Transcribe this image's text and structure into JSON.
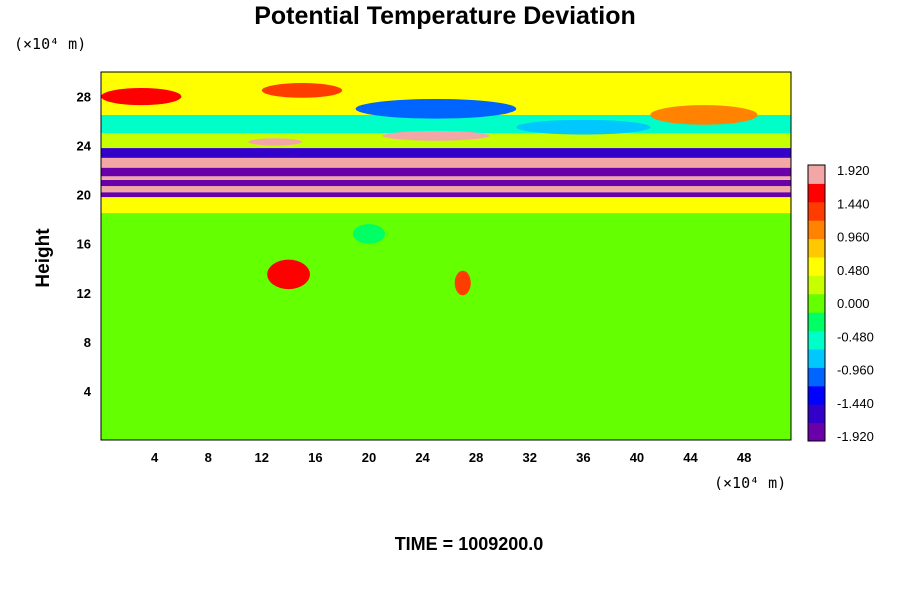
{
  "chart_data": {
    "type": "heatmap",
    "title": "Potential Temperature Deviation",
    "ylabel": "Height",
    "xlabel": "",
    "x_unit": "(×10⁴ m)",
    "y_unit": "(×10⁴ m)",
    "xlim": [
      0,
      51.5
    ],
    "ylim": [
      0,
      30
    ],
    "x_ticks": [
      "4",
      "8",
      "12",
      "16",
      "20",
      "24",
      "28",
      "32",
      "36",
      "40",
      "44",
      "48"
    ],
    "y_ticks": [
      "4",
      "8",
      "12",
      "16",
      "20",
      "24",
      "28"
    ],
    "colorbar": {
      "min": -2.0,
      "max": 2.0,
      "labels": [
        "1.920",
        "1.440",
        "0.960",
        "0.480",
        "0.000",
        "-0.480",
        "-0.960",
        "-1.440",
        "-1.920"
      ],
      "colors": [
        "#6a00a8",
        "#3200c8",
        "#0000ff",
        "#0064ff",
        "#00c8ff",
        "#00ffc8",
        "#00ff64",
        "#64ff00",
        "#c8ff00",
        "#ffff00",
        "#ffc800",
        "#ff8200",
        "#ff3c00",
        "#ff0000",
        "#f2a6a6"
      ]
    },
    "bands": [
      {
        "y_from": 0,
        "y_to": 18.5,
        "value": 0.05
      },
      {
        "y_from": 18.5,
        "y_to": 19.8,
        "value": 0.4
      },
      {
        "y_from": 19.8,
        "y_to": 20.2,
        "value": -1.9
      },
      {
        "y_from": 20.2,
        "y_to": 20.7,
        "value": 2.0
      },
      {
        "y_from": 20.7,
        "y_to": 21.2,
        "value": -1.9
      },
      {
        "y_from": 21.2,
        "y_to": 21.5,
        "value": 2.0
      },
      {
        "y_from": 21.5,
        "y_to": 22.2,
        "value": -1.9
      },
      {
        "y_from": 22.2,
        "y_to": 23.0,
        "value": 2.0
      },
      {
        "y_from": 23.0,
        "y_to": 23.8,
        "value": -1.5
      },
      {
        "y_from": 23.8,
        "y_to": 25.0,
        "value": 0.2
      },
      {
        "y_from": 25.0,
        "y_to": 26.5,
        "value": -0.5
      },
      {
        "y_from": 26.5,
        "y_to": 30,
        "value": 0.6
      }
    ],
    "features": [
      {
        "x": 14,
        "y": 13.5,
        "rx": 1.6,
        "ry": 1.2,
        "value": 1.5
      },
      {
        "x": 27,
        "y": 12.8,
        "rx": 0.6,
        "ry": 1.0,
        "value": 1.2
      },
      {
        "x": 20,
        "y": 16.8,
        "rx": 1.2,
        "ry": 0.8,
        "value": -0.4
      },
      {
        "x": 13,
        "y": 24.3,
        "rx": 2.0,
        "ry": 0.3,
        "value": 1.9
      },
      {
        "x": 25,
        "y": 24.8,
        "rx": 4.0,
        "ry": 0.4,
        "value": 1.9
      },
      {
        "x": 25,
        "y": 27.0,
        "rx": 6.0,
        "ry": 0.8,
        "value": -1.2
      },
      {
        "x": 36,
        "y": 25.5,
        "rx": 5.0,
        "ry": 0.6,
        "value": -0.9
      },
      {
        "x": 3,
        "y": 28.0,
        "rx": 3.0,
        "ry": 0.7,
        "value": 1.6
      },
      {
        "x": 15,
        "y": 28.5,
        "rx": 3.0,
        "ry": 0.6,
        "value": 1.2
      },
      {
        "x": 45,
        "y": 26.5,
        "rx": 4.0,
        "ry": 0.8,
        "value": 1.0
      }
    ]
  },
  "footer": {
    "time_label": "TIME = 1009200.0"
  }
}
